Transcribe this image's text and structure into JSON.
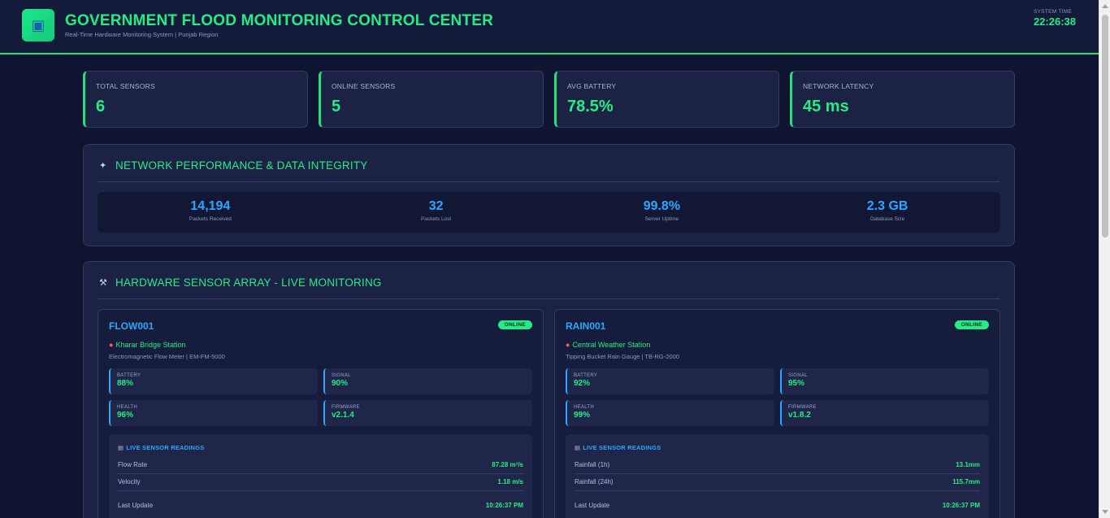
{
  "header": {
    "logo_icon": "monitor-icon",
    "title": "GOVERNMENT FLOOD MONITORING CONTROL CENTER",
    "subtitle": "Real-Time Hardware Monitoring System | Punjab Region",
    "system_time_label": "SYSTEM TIME",
    "system_time": "22:26:38"
  },
  "stats": [
    {
      "label": "TOTAL SENSORS",
      "value": "6"
    },
    {
      "label": "ONLINE SENSORS",
      "value": "5"
    },
    {
      "label": "AVG BATTERY",
      "value": "78.5%"
    },
    {
      "label": "NETWORK LATENCY",
      "value": "45 ms"
    }
  ],
  "network_panel": {
    "icon": "satellite-dish-icon",
    "title": "NETWORK PERFORMANCE & DATA INTEGRITY",
    "metrics": [
      {
        "value": "14,194",
        "label": "Packets Received"
      },
      {
        "value": "32",
        "label": "Packets Lost"
      },
      {
        "value": "99.8%",
        "label": "Server Uptime"
      },
      {
        "value": "2.3 GB",
        "label": "Database Size"
      }
    ]
  },
  "sensor_panel": {
    "icon": "wrench-icon",
    "title": "HARDWARE SENSOR ARRAY - LIVE MONITORING",
    "sensors": [
      {
        "id": "FLOW001",
        "status": "ONLINE",
        "location": "Kharar Bridge Station",
        "model": "Electromagnetic Flow Meter | EM-FM-5000",
        "battery_label": "BATTERY",
        "battery": "88%",
        "signal_label": "SIGNAL",
        "signal": "90%",
        "health_label": "HEALTH",
        "health": "96%",
        "firmware_label": "FIRMWARE",
        "firmware": "v2.1.4",
        "readings_title": "LIVE SENSOR READINGS",
        "readings": [
          {
            "label": "Flow Rate",
            "value": "87.28 m³/s"
          },
          {
            "label": "Velocity",
            "value": "1.18 m/s"
          },
          {
            "label": "Last Update",
            "value": "10:26:37 PM"
          }
        ]
      },
      {
        "id": "RAIN001",
        "status": "ONLINE",
        "location": "Central Weather Station",
        "model": "Tipping Bucket Rain Gauge | TB-RG-2000",
        "battery_label": "BATTERY",
        "battery": "92%",
        "signal_label": "SIGNAL",
        "signal": "95%",
        "health_label": "HEALTH",
        "health": "99%",
        "firmware_label": "FIRMWARE",
        "firmware": "v1.8.2",
        "readings_title": "LIVE SENSOR READINGS",
        "readings": [
          {
            "label": "Rainfall (1h)",
            "value": "13.1mm"
          },
          {
            "label": "Rainfall (24h)",
            "value": "115.7mm"
          },
          {
            "label": "Last Update",
            "value": "10:26:37 PM"
          }
        ]
      }
    ]
  },
  "colors": {
    "accent_green": "#22ee85",
    "accent_blue": "#2aa8ff",
    "background": "#0f1530",
    "panel": "#1b2243"
  }
}
